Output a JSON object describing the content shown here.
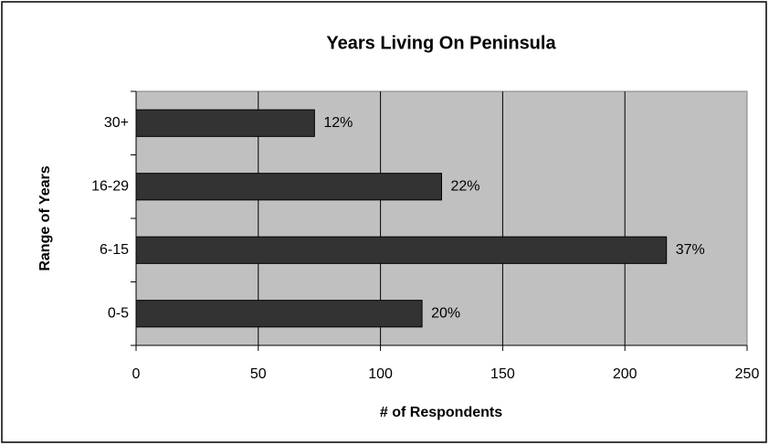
{
  "chart_data": {
    "type": "bar",
    "orientation": "horizontal",
    "title": "Years Living On Peninsula",
    "x_label": "# of Respondents",
    "y_label": "Range of Years",
    "categories": [
      "0-5",
      "6-15",
      "16-29",
      "30+"
    ],
    "values": [
      117,
      217,
      125,
      73
    ],
    "value_labels": [
      "20%",
      "37%",
      "22%",
      "12%"
    ],
    "color": "#333333",
    "plot_background": "#c0c0c0",
    "xlim": [
      0,
      250
    ],
    "xticks": [
      0,
      50,
      100,
      150,
      200,
      250
    ],
    "grid": true
  }
}
